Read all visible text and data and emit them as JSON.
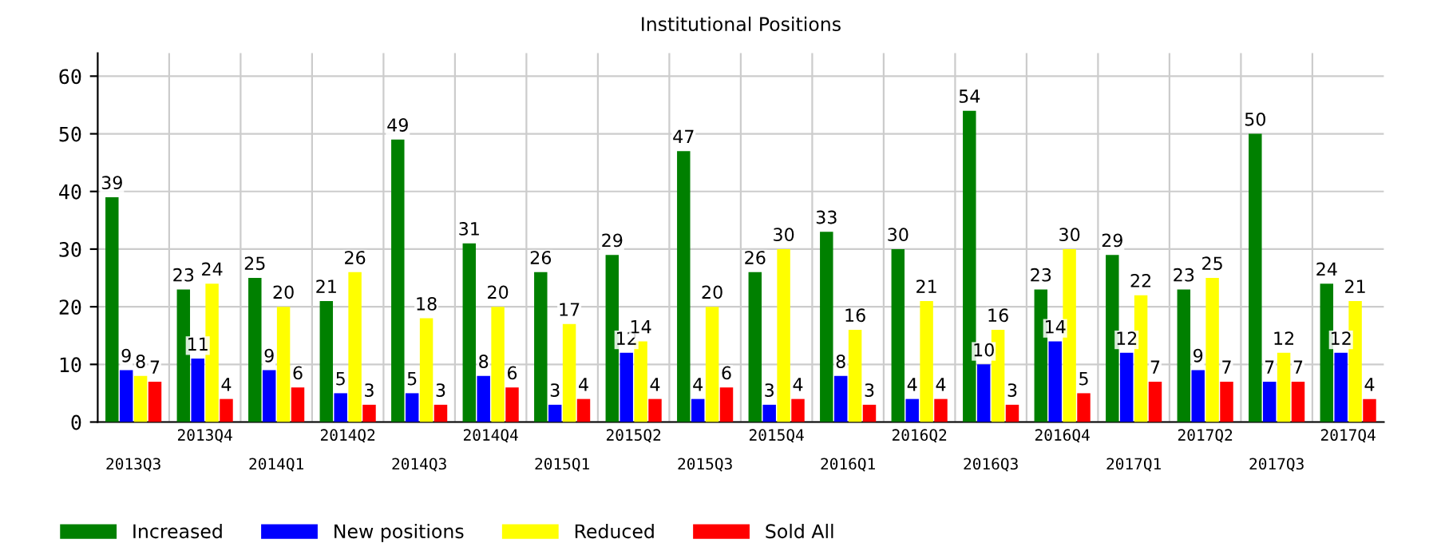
{
  "chart_data": {
    "type": "bar",
    "title": "Institutional Positions",
    "categories": [
      "2013Q3",
      "2013Q4",
      "2014Q1",
      "2014Q2",
      "2014Q3",
      "2014Q4",
      "2015Q1",
      "2015Q2",
      "2015Q3",
      "2015Q4",
      "2016Q1",
      "2016Q2",
      "2016Q3",
      "2016Q4",
      "2017Q1",
      "2017Q2",
      "2017Q3",
      "2017Q4"
    ],
    "series": [
      {
        "name": "Increased",
        "color": "#008000",
        "values": [
          39,
          23,
          25,
          21,
          49,
          31,
          26,
          29,
          47,
          26,
          33,
          30,
          54,
          23,
          29,
          23,
          50,
          24
        ]
      },
      {
        "name": "New positions",
        "color": "#0000ff",
        "values": [
          9,
          11,
          9,
          5,
          5,
          8,
          3,
          12,
          4,
          3,
          8,
          4,
          10,
          14,
          12,
          9,
          7,
          12
        ]
      },
      {
        "name": "Reduced",
        "color": "#ffff00",
        "values": [
          8,
          24,
          20,
          26,
          18,
          20,
          17,
          14,
          20,
          30,
          16,
          21,
          16,
          30,
          22,
          25,
          12,
          21
        ]
      },
      {
        "name": "Sold All",
        "color": "#ff0000",
        "values": [
          7,
          4,
          6,
          3,
          3,
          6,
          4,
          4,
          6,
          4,
          3,
          4,
          3,
          5,
          7,
          7,
          7,
          4
        ]
      }
    ],
    "ylim": [
      0,
      64
    ],
    "yticks": [
      0,
      10,
      20,
      30,
      40,
      50,
      60
    ],
    "grid": true,
    "legend": "bottom left",
    "data_labels": true
  }
}
